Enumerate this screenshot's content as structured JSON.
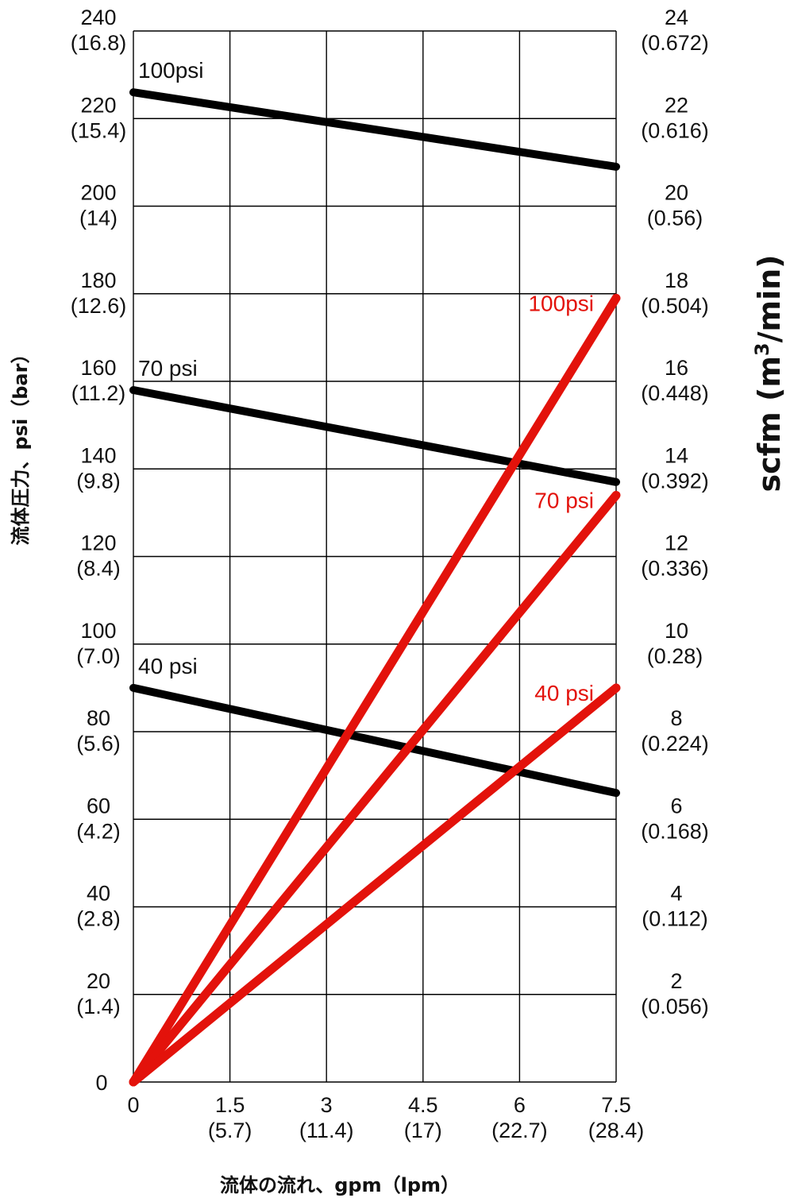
{
  "chart_data": {
    "type": "line",
    "xlabel": "流体の流れ、gpm（lpm）",
    "ylabel_left": "流体圧力、psi（bar）",
    "ylabel_right_main": "scfm (m",
    "ylabel_right_sup": "3",
    "ylabel_right_tail": "/min)",
    "xlim": [
      0,
      7.5
    ],
    "ylim_left": [
      0,
      240
    ],
    "ylim_right": [
      0,
      24
    ],
    "grid": true,
    "x_ticks": [
      {
        "value": 0,
        "label": "0",
        "sub": ""
      },
      {
        "value": 1.5,
        "label": "1.5",
        "sub": "(5.7)"
      },
      {
        "value": 3,
        "label": "3",
        "sub": "(11.4)"
      },
      {
        "value": 4.5,
        "label": "4.5",
        "sub": "(17)"
      },
      {
        "value": 6,
        "label": "6",
        "sub": "(22.7)"
      },
      {
        "value": 7.5,
        "label": "7.5",
        "sub": "(28.4)"
      }
    ],
    "y_left_ticks": [
      {
        "value": 0,
        "label": "0",
        "sub": ""
      },
      {
        "value": 20,
        "label": "20",
        "sub": "(1.4)"
      },
      {
        "value": 40,
        "label": "40",
        "sub": "(2.8)"
      },
      {
        "value": 60,
        "label": "60",
        "sub": "(4.2)"
      },
      {
        "value": 80,
        "label": "80",
        "sub": "(5.6)"
      },
      {
        "value": 100,
        "label": "100",
        "sub": "(7.0)"
      },
      {
        "value": 120,
        "label": "120",
        "sub": "(8.4)"
      },
      {
        "value": 140,
        "label": "140",
        "sub": "(9.8)"
      },
      {
        "value": 160,
        "label": "160",
        "sub": "(11.2)"
      },
      {
        "value": 180,
        "label": "180",
        "sub": "(12.6)"
      },
      {
        "value": 200,
        "label": "200",
        "sub": "(14)"
      },
      {
        "value": 220,
        "label": "220",
        "sub": "(15.4)"
      },
      {
        "value": 240,
        "label": "240",
        "sub": "(16.8)"
      }
    ],
    "y_right_ticks": [
      {
        "value": 2,
        "label": "2",
        "sub": "(0.056)"
      },
      {
        "value": 4,
        "label": "4",
        "sub": "(0.112)"
      },
      {
        "value": 6,
        "label": "6",
        "sub": "(0.168)"
      },
      {
        "value": 8,
        "label": "8",
        "sub": "(0.224)"
      },
      {
        "value": 10,
        "label": "10",
        "sub": "(0.28)"
      },
      {
        "value": 12,
        "label": "12",
        "sub": "(0.336)"
      },
      {
        "value": 14,
        "label": "14",
        "sub": "(0.392)"
      },
      {
        "value": 16,
        "label": "16",
        "sub": "(0.448)"
      },
      {
        "value": 18,
        "label": "18",
        "sub": "(0.504)"
      },
      {
        "value": 20,
        "label": "20",
        "sub": "(0.56)"
      },
      {
        "value": 22,
        "label": "22",
        "sub": "(0.616)"
      },
      {
        "value": 24,
        "label": "24",
        "sub": "(0.672)"
      }
    ],
    "series": [
      {
        "name": "100psi",
        "axis": "left",
        "color": "#000000",
        "x": [
          0,
          7.5
        ],
        "y": [
          226,
          209
        ]
      },
      {
        "name": "70 psi",
        "axis": "left",
        "color": "#000000",
        "x": [
          0,
          7.5
        ],
        "y": [
          158,
          137
        ]
      },
      {
        "name": "40 psi",
        "axis": "left",
        "color": "#000000",
        "x": [
          0,
          7.5
        ],
        "y": [
          90,
          66
        ]
      },
      {
        "name": "100psi",
        "axis": "right",
        "color": "#e3120b",
        "x": [
          0,
          7.5
        ],
        "y": [
          0,
          17.9
        ]
      },
      {
        "name": "70 psi",
        "axis": "right",
        "color": "#e3120b",
        "x": [
          0,
          7.5
        ],
        "y": [
          0,
          13.4
        ]
      },
      {
        "name": "40 psi",
        "axis": "right",
        "color": "#e3120b",
        "x": [
          0,
          7.5
        ],
        "y": [
          0,
          9.0
        ]
      }
    ]
  }
}
